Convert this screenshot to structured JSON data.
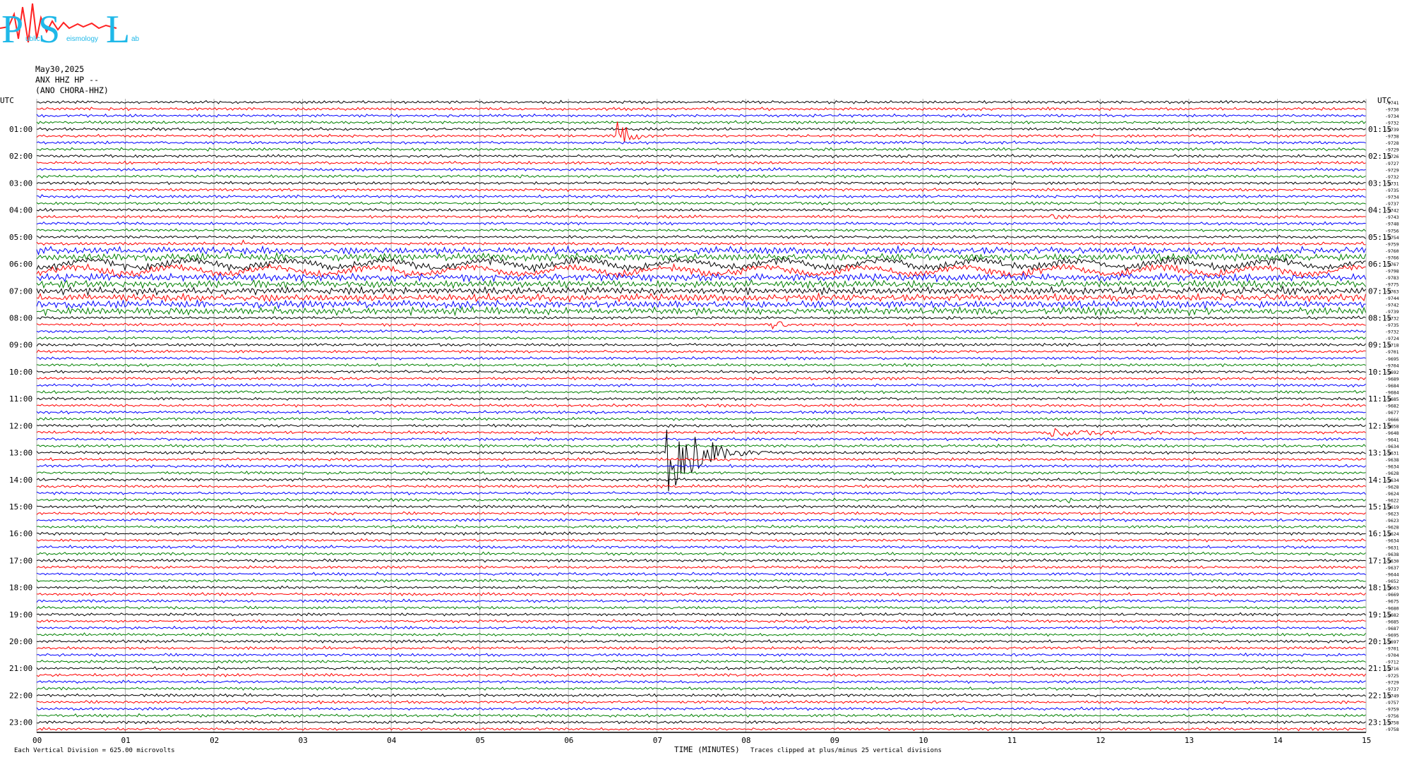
{
  "logo": {
    "big_letters": [
      "P",
      "S",
      "L"
    ],
    "small_words": [
      "ublic",
      "eismology",
      "ab"
    ],
    "colors": {
      "letters": "#1fb8e8",
      "trace": "#ff2222"
    }
  },
  "header": {
    "date": "May30,2025",
    "station": "ANX HHZ HP --",
    "source": "(ANO CHORA-HHZ)"
  },
  "utc_label_left": "UTC",
  "utc_label_right": "UTC",
  "chart_data": {
    "type": "line",
    "subtype": "helicorder",
    "xlabel": "TIME (MINUTES)",
    "x_ticks": [
      "00",
      "01",
      "02",
      "03",
      "04",
      "05",
      "06",
      "07",
      "08",
      "09",
      "10",
      "11",
      "12",
      "13",
      "14",
      "15"
    ],
    "xlim": [
      0,
      15
    ],
    "rows_per_hour": 4,
    "row_minutes": 15,
    "trace_colors": [
      "#000000",
      "#ff0000",
      "#0000ff",
      "#008000"
    ],
    "left_hour_labels": [
      "01:00",
      "02:00",
      "03:00",
      "04:00",
      "05:00",
      "06:00",
      "07:00",
      "08:00",
      "09:00",
      "10:00",
      "11:00",
      "12:00",
      "13:00",
      "14:00",
      "15:00",
      "16:00",
      "17:00",
      "18:00",
      "19:00",
      "20:00",
      "21:00",
      "22:00",
      "23:00"
    ],
    "right_hour_labels": [
      "01:15",
      "02:15",
      "03:15",
      "04:15",
      "05:15",
      "06:15",
      "07:15",
      "08:15",
      "09:15",
      "10:15",
      "11:15",
      "12:15",
      "13:15",
      "14:15",
      "15:15",
      "16:15",
      "17:15",
      "18:15",
      "19:15",
      "20:15",
      "21:15",
      "22:15",
      "23:15"
    ],
    "row_offsets": [
      "-9741",
      "-9730",
      "-9734",
      "-9732",
      "-9739",
      "-9738",
      "-9728",
      "-9729",
      "-9726",
      "-9727",
      "-9729",
      "-9732",
      "-9731",
      "-9735",
      "-9734",
      "-9737",
      "-9742",
      "-9743",
      "-9748",
      "-9756",
      "-9754",
      "-9759",
      "-9760",
      "-9766",
      "-9767",
      "-9798",
      "-9783",
      "-9775",
      "-9763",
      "-9744",
      "-9742",
      "-9739",
      "-9732",
      "-9735",
      "-9732",
      "-9724",
      "-9718",
      "-9701",
      "-9695",
      "-9704",
      "-9692",
      "-9689",
      "-9684",
      "-9684",
      "-9685",
      "-9682",
      "-9677",
      "-9666",
      "-9658",
      "-9648",
      "-9641",
      "-9634",
      "-9631",
      "-9638",
      "-9634",
      "-9628",
      "-9634",
      "-9628",
      "-9624",
      "-9622",
      "-9619",
      "-9623",
      "-9623",
      "-9628",
      "-9624",
      "-9634",
      "-9631",
      "-9638",
      "-9630",
      "-9637",
      "-9644",
      "-9652",
      "-9663",
      "-9669",
      "-9675",
      "-9680",
      "-9682",
      "-9685",
      "-9687",
      "-9695",
      "-9697",
      "-9701",
      "-9704",
      "-9712",
      "-9716",
      "-9725",
      "-9729",
      "-9737",
      "-9749",
      "-9757",
      "-9759",
      "-9756",
      "-9758",
      "-9758"
    ],
    "events": [
      {
        "row": 5,
        "minute": 6.55,
        "duration": 0.5,
        "amplitude": 22
      },
      {
        "row": 17,
        "minute": 11.45,
        "duration": 0.3,
        "amplitude": 6
      },
      {
        "row": 21,
        "minute": 2.3,
        "duration": 0.3,
        "amplitude": 5
      },
      {
        "row": 33,
        "minute": 8.3,
        "duration": 0.6,
        "amplitude": 7
      },
      {
        "row": 52,
        "minute": 7.1,
        "duration": 1.2,
        "amplitude": 70
      },
      {
        "row": 49,
        "minute": 11.4,
        "duration": 2.6,
        "amplitude": 6
      },
      {
        "row": 59,
        "minute": 11.55,
        "duration": 0.3,
        "amplitude": 10
      }
    ],
    "noisy_rows": [
      22,
      23,
      24,
      25,
      26,
      27,
      28,
      29,
      30,
      31
    ],
    "footer_left": "Each Vertical Division =  625.00 microvolts",
    "footer_right": "Traces clipped at plus/minus 25 vertical divisions"
  }
}
